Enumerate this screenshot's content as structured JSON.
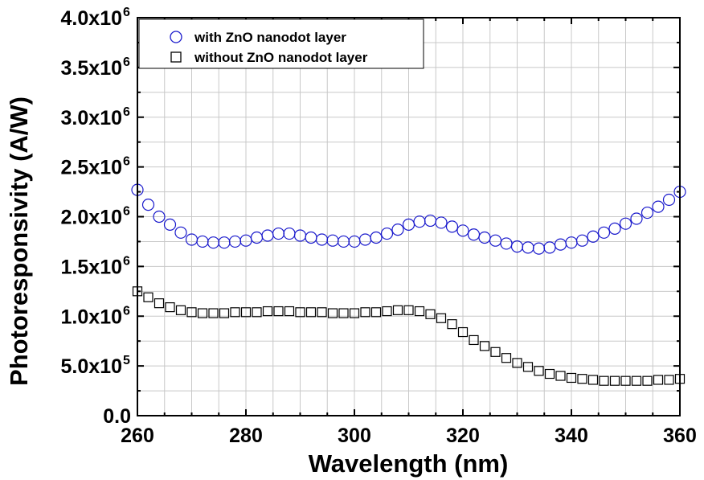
{
  "chart_data": {
    "type": "scatter",
    "xlabel": "Wavelength (nm)",
    "ylabel": "Photoresponsivity (A/W)",
    "xlim": [
      260,
      360
    ],
    "ylim": [
      0,
      4000000
    ],
    "x_ticks": [
      260,
      280,
      300,
      320,
      340,
      360
    ],
    "y_ticks": [
      {
        "value": 0,
        "mantissa": "0.0",
        "exp": ""
      },
      {
        "value": 500000,
        "mantissa": "5.0",
        "exp": "5"
      },
      {
        "value": 1000000,
        "mantissa": "1.0",
        "exp": "6"
      },
      {
        "value": 1500000,
        "mantissa": "1.5",
        "exp": "6"
      },
      {
        "value": 2000000,
        "mantissa": "2.0",
        "exp": "6"
      },
      {
        "value": 2500000,
        "mantissa": "2.5",
        "exp": "6"
      },
      {
        "value": 3000000,
        "mantissa": "3.0",
        "exp": "6"
      },
      {
        "value": 3500000,
        "mantissa": "3.5",
        "exp": "6"
      },
      {
        "value": 4000000,
        "mantissa": "4.0",
        "exp": "6"
      }
    ],
    "grid": true,
    "legend_position": "top-left",
    "series": [
      {
        "name": "with ZnO nanodot layer",
        "marker": "circle",
        "color": "#1a1acc",
        "x": [
          260,
          262,
          264,
          266,
          268,
          270,
          272,
          274,
          276,
          278,
          280,
          282,
          284,
          286,
          288,
          290,
          292,
          294,
          296,
          298,
          300,
          302,
          304,
          306,
          308,
          310,
          312,
          314,
          316,
          318,
          320,
          322,
          324,
          326,
          328,
          330,
          332,
          334,
          336,
          338,
          340,
          342,
          344,
          346,
          348,
          350,
          352,
          354,
          356,
          358,
          360
        ],
        "y": [
          2270000,
          2120000,
          2000000,
          1920000,
          1840000,
          1770000,
          1750000,
          1740000,
          1740000,
          1750000,
          1760000,
          1790000,
          1810000,
          1830000,
          1830000,
          1810000,
          1790000,
          1770000,
          1760000,
          1750000,
          1750000,
          1770000,
          1790000,
          1830000,
          1870000,
          1920000,
          1950000,
          1960000,
          1940000,
          1900000,
          1860000,
          1820000,
          1790000,
          1760000,
          1730000,
          1700000,
          1690000,
          1680000,
          1690000,
          1720000,
          1740000,
          1760000,
          1800000,
          1840000,
          1880000,
          1930000,
          1980000,
          2040000,
          2100000,
          2170000,
          2250000
        ]
      },
      {
        "name": "without ZnO nanodot layer",
        "marker": "square",
        "color": "#000000",
        "x": [
          260,
          262,
          264,
          266,
          268,
          270,
          272,
          274,
          276,
          278,
          280,
          282,
          284,
          286,
          288,
          290,
          292,
          294,
          296,
          298,
          300,
          302,
          304,
          306,
          308,
          310,
          312,
          314,
          316,
          318,
          320,
          322,
          324,
          326,
          328,
          330,
          332,
          334,
          336,
          338,
          340,
          342,
          344,
          346,
          348,
          350,
          352,
          354,
          356,
          358,
          360
        ],
        "y": [
          1250000,
          1190000,
          1130000,
          1090000,
          1060000,
          1040000,
          1030000,
          1030000,
          1030000,
          1040000,
          1040000,
          1040000,
          1050000,
          1050000,
          1050000,
          1040000,
          1040000,
          1040000,
          1030000,
          1030000,
          1030000,
          1040000,
          1040000,
          1050000,
          1060000,
          1060000,
          1050000,
          1020000,
          980000,
          920000,
          840000,
          760000,
          700000,
          640000,
          580000,
          530000,
          490000,
          450000,
          420000,
          400000,
          380000,
          370000,
          360000,
          350000,
          350000,
          350000,
          350000,
          350000,
          360000,
          360000,
          370000
        ]
      }
    ]
  }
}
